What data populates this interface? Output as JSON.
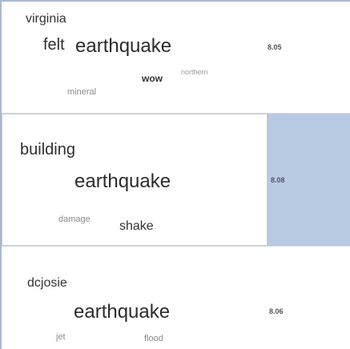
{
  "panels": [
    {
      "title": "virginia",
      "words": [
        "felt",
        "earthquake",
        "wow",
        "northern",
        "mineral"
      ],
      "score": "8.05",
      "selected": false
    },
    {
      "title": "building",
      "words": [
        "earthquake",
        "damage",
        "shake"
      ],
      "score": "8.08",
      "selected": true
    },
    {
      "title": "dcjosie",
      "words": [
        "earthquake",
        "jet",
        "flood"
      ],
      "score": "8.06",
      "selected": false
    }
  ]
}
